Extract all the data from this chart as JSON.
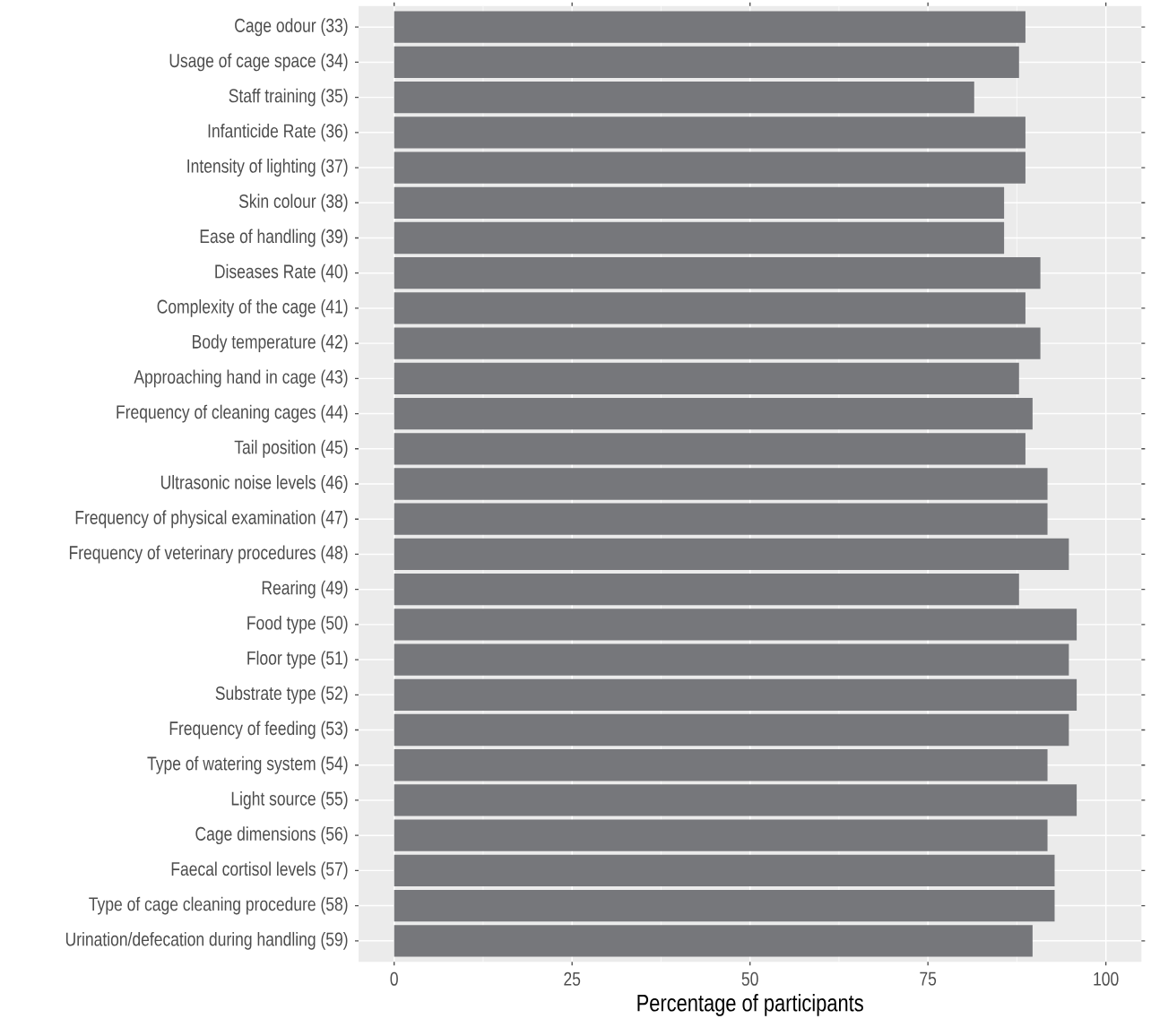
{
  "chart_data": {
    "type": "bar",
    "orientation": "horizontal",
    "xlabel": "Percentage of participants",
    "categories": [
      "Cage odour (33)",
      "Usage of cage space (34)",
      "Staff training (35)",
      "Infanticide Rate (36)",
      "Intensity of lighting (37)",
      "Skin colour (38)",
      "Ease of handling (39)",
      "Diseases Rate (40)",
      "Complexity of the cage (41)",
      "Body temperature (42)",
      "Approaching hand in cage (43)",
      "Frequency of cleaning cages (44)",
      "Tail position (45)",
      "Ultrasonic noise levels (46)",
      "Frequency of physical examination (47)",
      "Frequency of veterinary procedures (48)",
      "Rearing (49)",
      "Food type (50)",
      "Floor type (51)",
      "Substrate type (52)",
      "Frequency of feeding (53)",
      "Type of watering system (54)",
      "Light source (55)",
      "Cage dimensions (56)",
      "Faecal cortisol levels (57)",
      "Type of cage cleaning procedure (58)",
      "Urination/defecation during handling (59)"
    ],
    "values": [
      88.7,
      87.8,
      81.5,
      88.7,
      88.7,
      85.7,
      85.7,
      90.8,
      88.7,
      90.8,
      87.8,
      89.7,
      88.7,
      91.8,
      91.8,
      94.8,
      87.8,
      95.9,
      94.8,
      95.9,
      94.8,
      91.8,
      95.9,
      91.8,
      92.8,
      92.8,
      89.7
    ],
    "color": "#76777b",
    "xlim": [
      -5,
      105
    ],
    "xticks": [
      0,
      25,
      50,
      75,
      100
    ],
    "grid": true
  }
}
